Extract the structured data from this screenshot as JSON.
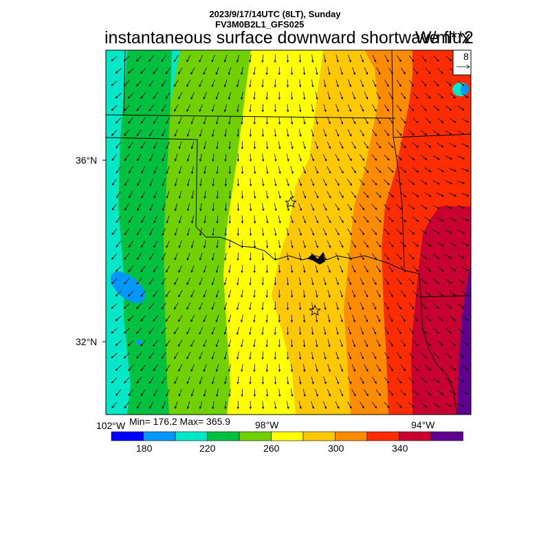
{
  "title": {
    "line1": "2023/9/17/14UTC (8LT), Sunday",
    "line2": "FV3M0B2L1_GFS025",
    "main": "instantaneous surface downward shortwave flux",
    "units": "W/m**2"
  },
  "vector_reference": {
    "label": "8"
  },
  "axes": {
    "lat_ticks": [
      "36°N",
      "32°N"
    ],
    "lon_ticks": [
      "102°W",
      "98°W",
      "94°W"
    ]
  },
  "stats": {
    "text": "Min= 176.2 Max= 365.9"
  },
  "colorbar": {
    "colors": [
      "#0000ff",
      "#0098ff",
      "#00e8c8",
      "#00c040",
      "#70d000",
      "#ffff00",
      "#ffc800",
      "#ff8c00",
      "#ff2c00",
      "#c80032",
      "#600090"
    ],
    "labels": [
      "180",
      "220",
      "260",
      "300",
      "340"
    ]
  },
  "field": {
    "colors": {
      "teal": "#00e8c8",
      "blue": "#0098ff",
      "green": "#00c040",
      "yellowgreen": "#70d000",
      "yellow": "#ffff00",
      "gold": "#ffc800",
      "orange": "#ff8c00",
      "red": "#ff2c00",
      "crimson": "#c80032",
      "purple": "#600090"
    }
  }
}
